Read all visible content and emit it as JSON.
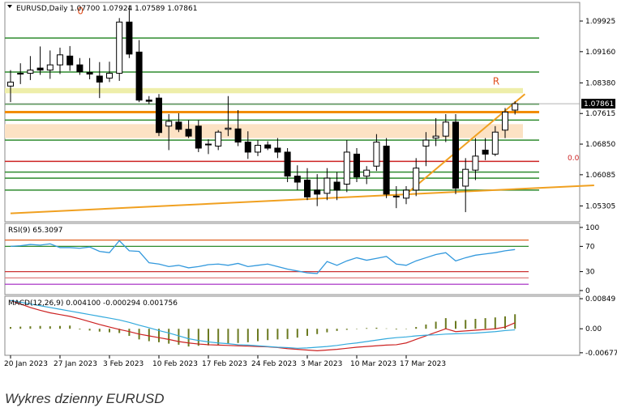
{
  "caption": "Wykres dzienny EURUSD",
  "chart_data": {
    "type": "candlestick",
    "symbol_label": "EURUSD,Daily",
    "ohlc_label": "1.07700 1.07924 1.07589 1.07861",
    "last_price_label": "1.07861",
    "price_axis_ticks": [
      "1.09925",
      "1.09160",
      "1.08380",
      "1.07615",
      "1.06850",
      "1.06085",
      "1.05305"
    ],
    "date_ticks": [
      "20 Jan 2023",
      "27 Jan 2023",
      "3 Feb 2023",
      "10 Feb 2023",
      "17 Feb 2023",
      "24 Feb 2023",
      "3 Mar 2023",
      "10 Mar 2023",
      "17 Mar 2023"
    ],
    "ylim": [
      1.0495,
      1.1035
    ],
    "candles": [
      {
        "o": 1.083,
        "h": 1.087,
        "l": 1.079,
        "c": 1.084
      },
      {
        "o": 1.086,
        "h": 1.0887,
        "l": 1.0835,
        "c": 1.0862
      },
      {
        "o": 1.0862,
        "h": 1.0905,
        "l": 1.0845,
        "c": 1.087
      },
      {
        "o": 1.0875,
        "h": 1.0929,
        "l": 1.0858,
        "c": 1.087
      },
      {
        "o": 1.087,
        "h": 1.0919,
        "l": 1.0848,
        "c": 1.0883
      },
      {
        "o": 1.0883,
        "h": 1.0926,
        "l": 1.086,
        "c": 1.0908
      },
      {
        "o": 1.0905,
        "h": 1.093,
        "l": 1.0868,
        "c": 1.0883
      },
      {
        "o": 1.0883,
        "h": 1.09,
        "l": 1.0858,
        "c": 1.0866
      },
      {
        "o": 1.0864,
        "h": 1.09,
        "l": 1.0847,
        "c": 1.086
      },
      {
        "o": 1.0855,
        "h": 1.089,
        "l": 1.08,
        "c": 1.084
      },
      {
        "o": 1.085,
        "h": 1.0891,
        "l": 1.084,
        "c": 1.0862
      },
      {
        "o": 1.0862,
        "h": 1.1,
        "l": 1.0843,
        "c": 1.099
      },
      {
        "o": 1.099,
        "h": 1.1032,
        "l": 1.09,
        "c": 1.091
      },
      {
        "o": 1.0915,
        "h": 1.0945,
        "l": 1.079,
        "c": 1.0795
      },
      {
        "o": 1.0795,
        "h": 1.0805,
        "l": 1.0785,
        "c": 1.0792
      },
      {
        "o": 1.08,
        "h": 1.081,
        "l": 1.0705,
        "c": 1.0714
      },
      {
        "o": 1.073,
        "h": 1.076,
        "l": 1.067,
        "c": 1.0742
      },
      {
        "o": 1.074,
        "h": 1.0762,
        "l": 1.0715,
        "c": 1.0722
      },
      {
        "o": 1.0722,
        "h": 1.0745,
        "l": 1.07,
        "c": 1.0705
      },
      {
        "o": 1.073,
        "h": 1.0745,
        "l": 1.0665,
        "c": 1.0675
      },
      {
        "o": 1.0685,
        "h": 1.0697,
        "l": 1.066,
        "c": 1.0683
      },
      {
        "o": 1.068,
        "h": 1.072,
        "l": 1.067,
        "c": 1.0715
      },
      {
        "o": 1.0722,
        "h": 1.0805,
        "l": 1.0705,
        "c": 1.0725
      },
      {
        "o": 1.0723,
        "h": 1.077,
        "l": 1.068,
        "c": 1.069
      },
      {
        "o": 1.069,
        "h": 1.0717,
        "l": 1.0648,
        "c": 1.0665
      },
      {
        "o": 1.0665,
        "h": 1.0695,
        "l": 1.0655,
        "c": 1.0682
      },
      {
        "o": 1.0683,
        "h": 1.0692,
        "l": 1.067,
        "c": 1.0675
      },
      {
        "o": 1.0675,
        "h": 1.07,
        "l": 1.065,
        "c": 1.0665
      },
      {
        "o": 1.0665,
        "h": 1.0675,
        "l": 1.059,
        "c": 1.0605
      },
      {
        "o": 1.0605,
        "h": 1.0632,
        "l": 1.057,
        "c": 1.059
      },
      {
        "o": 1.0595,
        "h": 1.0625,
        "l": 1.0545,
        "c": 1.0553
      },
      {
        "o": 1.057,
        "h": 1.061,
        "l": 1.053,
        "c": 1.056
      },
      {
        "o": 1.0562,
        "h": 1.0625,
        "l": 1.0545,
        "c": 1.06
      },
      {
        "o": 1.059,
        "h": 1.0615,
        "l": 1.0545,
        "c": 1.057
      },
      {
        "o": 1.0585,
        "h": 1.0695,
        "l": 1.0565,
        "c": 1.0665
      },
      {
        "o": 1.066,
        "h": 1.0675,
        "l": 1.059,
        "c": 1.0603
      },
      {
        "o": 1.0605,
        "h": 1.063,
        "l": 1.0585,
        "c": 1.062
      },
      {
        "o": 1.063,
        "h": 1.071,
        "l": 1.0618,
        "c": 1.069
      },
      {
        "o": 1.068,
        "h": 1.07,
        "l": 1.055,
        "c": 1.056
      },
      {
        "o": 1.0555,
        "h": 1.058,
        "l": 1.0525,
        "c": 1.0555
      },
      {
        "o": 1.055,
        "h": 1.058,
        "l": 1.0535,
        "c": 1.057
      },
      {
        "o": 1.057,
        "h": 1.065,
        "l": 1.0555,
        "c": 1.0625
      },
      {
        "o": 1.068,
        "h": 1.0715,
        "l": 1.063,
        "c": 1.0695
      },
      {
        "o": 1.07,
        "h": 1.075,
        "l": 1.068,
        "c": 1.0705
      },
      {
        "o": 1.0705,
        "h": 1.076,
        "l": 1.069,
        "c": 1.074
      },
      {
        "o": 1.074,
        "h": 1.076,
        "l": 1.056,
        "c": 1.0575
      },
      {
        "o": 1.058,
        "h": 1.065,
        "l": 1.0515,
        "c": 1.0622
      },
      {
        "o": 1.062,
        "h": 1.07,
        "l": 1.0595,
        "c": 1.0655
      },
      {
        "o": 1.067,
        "h": 1.07,
        "l": 1.0645,
        "c": 1.066
      },
      {
        "o": 1.066,
        "h": 1.073,
        "l": 1.0655,
        "c": 1.0715
      },
      {
        "o": 1.072,
        "h": 1.0775,
        "l": 1.07,
        "c": 1.0765
      },
      {
        "o": 1.077,
        "h": 1.0792,
        "l": 1.0759,
        "c": 1.0786
      }
    ],
    "horizontal_levels": [
      {
        "price": 1.095,
        "color": "#2e8b2e"
      },
      {
        "price": 1.0865,
        "color": "#2e8b2e"
      },
      {
        "price": 1.0812,
        "color": "#eeeeaa",
        "band_to": 1.0825
      },
      {
        "price": 1.0785,
        "color": "#2e8b2e"
      },
      {
        "price": 1.0765,
        "color": "#f28c00"
      },
      {
        "price": 1.0745,
        "color": "#2e8b2e"
      },
      {
        "price": 1.07,
        "color": "#fce2c4",
        "band_to": 1.0735
      },
      {
        "price": 1.0695,
        "color": "#2e8b2e"
      },
      {
        "price": 1.0642,
        "color": "#cc2222"
      },
      {
        "price": 1.0615,
        "color": "#2e8b2e"
      },
      {
        "price": 1.06,
        "color": "#2e8b2e"
      },
      {
        "price": 1.057,
        "color": "#2e8b2e"
      }
    ],
    "trendlines": [
      {
        "from": [
          0,
          1.0512
        ],
        "to": [
          59,
          1.0582
        ],
        "color": "#f0a020"
      },
      {
        "from": [
          40,
          1.056
        ],
        "to": [
          52,
          1.081
        ],
        "color": "#f0a020"
      }
    ],
    "markers": [
      {
        "text": "R",
        "candle": 49,
        "price": 1.0834,
        "color": "#e05020"
      },
      {
        "text": "0",
        "candle": 7,
        "price": 1.101,
        "color": "#e05020"
      },
      {
        "text": "0.0",
        "price": 1.0645,
        "color": "#cc2222"
      }
    ],
    "rsi": {
      "label": "RSI(9) 65.3097",
      "ticks": [
        "100",
        "70",
        "30",
        "0"
      ],
      "levels": [
        80,
        70,
        30,
        20,
        10
      ],
      "values": [
        70,
        71,
        73,
        72,
        74,
        68,
        68,
        67,
        69,
        62,
        60,
        79,
        63,
        62,
        44,
        42,
        38,
        40,
        36,
        38,
        41,
        42,
        40,
        43,
        38,
        40,
        42,
        38,
        34,
        31,
        28,
        27,
        46,
        40,
        47,
        52,
        48,
        51,
        54,
        42,
        40,
        47,
        52,
        57,
        60,
        47,
        52,
        56,
        58,
        60,
        63,
        65
      ]
    },
    "macd": {
      "label": "MACD(12,26,9) 0.004100 -0.000294 0.001756",
      "ticks": [
        "0.00849",
        "0.00",
        "-0.00677"
      ],
      "ylim": [
        -0.0068,
        0.0085
      ],
      "histogram": [
        0.0005,
        0.0006,
        0.0007,
        0.0008,
        0.0007,
        0.0008,
        0.0009,
        -0.0002,
        -0.0005,
        -0.0008,
        -0.001,
        -0.0012,
        -0.002,
        -0.003,
        -0.0035,
        -0.0038,
        -0.0042,
        -0.0045,
        -0.005,
        -0.0048,
        -0.0047,
        -0.0045,
        -0.0043,
        -0.004,
        -0.0038,
        -0.0035,
        -0.0032,
        -0.003,
        -0.0029,
        -0.0025,
        -0.002,
        -0.0015,
        -0.001,
        -0.0006,
        -0.0003,
        -0.0001,
        0.0002,
        0.0003,
        0.0001,
        -0.0002,
        -0.0001,
        0.0005,
        0.0012,
        0.002,
        0.003,
        0.0022,
        0.0025,
        0.0028,
        0.003,
        0.0032,
        0.0035,
        0.0041
      ],
      "signal": [
        0.008,
        0.0075,
        0.007,
        0.0065,
        0.006,
        0.0055,
        0.005,
        0.0045,
        0.004,
        0.0035,
        0.003,
        0.0025,
        0.0018,
        0.001,
        0.0003,
        -0.0005,
        -0.0012,
        -0.002,
        -0.0028,
        -0.0033,
        -0.0037,
        -0.004,
        -0.0042,
        -0.0045,
        -0.0046,
        -0.0048,
        -0.005,
        -0.0052,
        -0.0053,
        -0.0055,
        -0.0054,
        -0.0052,
        -0.005,
        -0.0047,
        -0.0043,
        -0.004,
        -0.0036,
        -0.0032,
        -0.0028,
        -0.0025,
        -0.0023,
        -0.002,
        -0.0018,
        -0.0017,
        -0.0015,
        -0.0014,
        -0.0013,
        -0.0012,
        -0.001,
        -0.0008,
        -0.0005,
        -0.0003
      ],
      "line": [
        0.008,
        0.007,
        0.006,
        0.0052,
        0.0045,
        0.004,
        0.0035,
        0.0028,
        0.002,
        0.0012,
        0.0005,
        -0.0002,
        -0.0008,
        -0.0015,
        -0.002,
        -0.0025,
        -0.003,
        -0.0036,
        -0.004,
        -0.0043,
        -0.0045,
        -0.0046,
        -0.0047,
        -0.0048,
        -0.0049,
        -0.005,
        -0.0051,
        -0.0053,
        -0.0056,
        -0.0058,
        -0.006,
        -0.0062,
        -0.006,
        -0.0058,
        -0.0055,
        -0.0052,
        -0.005,
        -0.0048,
        -0.0046,
        -0.0045,
        -0.004,
        -0.003,
        -0.002,
        -0.001,
        0.0,
        -0.0008,
        -0.0006,
        -0.0004,
        -0.0002,
        0.0,
        0.0005,
        0.0017
      ]
    }
  }
}
